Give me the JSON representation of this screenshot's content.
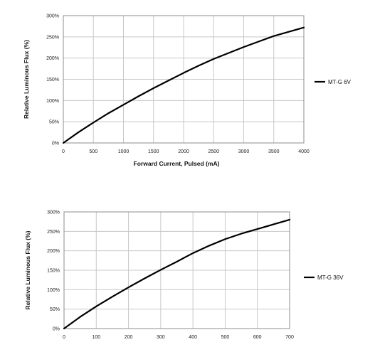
{
  "chart_data": [
    {
      "type": "line",
      "xlabel": "Forward Current, Pulsed (mA)",
      "ylabel": "Relative Luminous Flux (%)",
      "xlim": [
        0,
        4000
      ],
      "ylim": [
        0,
        300
      ],
      "x_ticks": [
        "0",
        "500",
        "1000",
        "1500",
        "2000",
        "2500",
        "3000",
        "3500",
        "4000"
      ],
      "y_ticks": [
        "0%",
        "50%",
        "100%",
        "150%",
        "200%",
        "250%",
        "300%"
      ],
      "grid": true,
      "legend_position": "right",
      "series": [
        {
          "name": "MT-G 6V",
          "color": "#000000",
          "x": [
            0,
            250,
            500,
            750,
            1000,
            1250,
            1500,
            1750,
            2000,
            2250,
            2500,
            2750,
            3000,
            3250,
            3500,
            3750,
            4000
          ],
          "y": [
            0,
            25,
            48,
            70,
            90,
            110,
            129,
            147,
            165,
            182,
            198,
            212,
            226,
            239,
            252,
            262,
            272
          ]
        }
      ]
    },
    {
      "type": "line",
      "xlabel": "",
      "ylabel": "Relative Luminous Flux (%)",
      "xlim": [
        0,
        700
      ],
      "ylim": [
        0,
        300
      ],
      "x_ticks": [
        "0",
        "100",
        "200",
        "300",
        "400",
        "500",
        "600",
        "700"
      ],
      "y_ticks": [
        "0%",
        "50%",
        "100%",
        "150%",
        "200%",
        "250%",
        "300%"
      ],
      "grid": true,
      "legend_position": "right",
      "series": [
        {
          "name": "MT-G 36V",
          "color": "#000000",
          "x": [
            0,
            50,
            100,
            150,
            200,
            250,
            300,
            350,
            400,
            450,
            500,
            550,
            600,
            650,
            700
          ],
          "y": [
            0,
            30,
            57,
            82,
            106,
            129,
            151,
            172,
            194,
            213,
            230,
            244,
            256,
            268,
            280
          ]
        }
      ]
    }
  ]
}
